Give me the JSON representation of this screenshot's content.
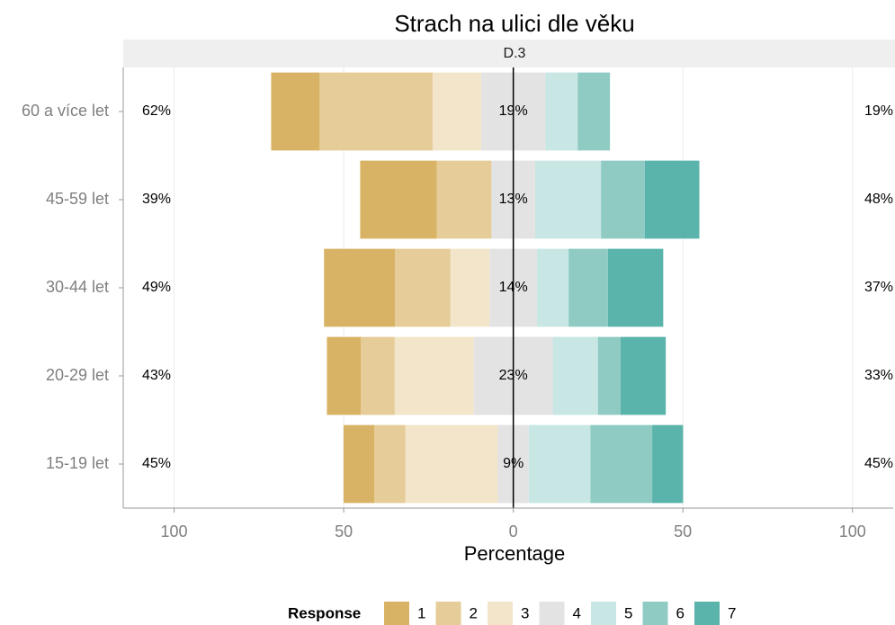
{
  "chart_data": {
    "type": "diverging_bar",
    "title": "Strach na ulici dle věku",
    "facet_label": "D.3",
    "xlabel": "Percentage",
    "legend_title": "Response",
    "legend_position": "bottom",
    "categories": [
      "60 a více let",
      "45-59 let",
      "30-44 let",
      "20-29 let",
      "15-19 let"
    ],
    "neutral_series": 3,
    "series": [
      {
        "name": "1",
        "color": "#d8b365",
        "values": [
          14.3,
          22.6,
          20.9,
          10,
          9.1
        ]
      },
      {
        "name": "2",
        "color": "#e6cc98",
        "values": [
          33.3,
          16.1,
          16.3,
          10,
          9.1
        ]
      },
      {
        "name": "3",
        "color": "#f3e5c9",
        "values": [
          14.3,
          0,
          11.6,
          23.3,
          27.3
        ]
      },
      {
        "name": "4",
        "color": "#e3e3e3",
        "values": [
          19,
          12.9,
          14,
          23.3,
          9.1
        ]
      },
      {
        "name": "5",
        "color": "#c8e6e3",
        "values": [
          9.5,
          19.4,
          9.3,
          13.3,
          18.2
        ]
      },
      {
        "name": "6",
        "color": "#8fcbc3",
        "values": [
          9.5,
          12.9,
          11.6,
          6.7,
          18.2
        ]
      },
      {
        "name": "7",
        "color": "#5ab4ac",
        "values": [
          0,
          16.1,
          16.3,
          13.3,
          9.1
        ]
      }
    ],
    "low_pct": [
      {
        "value": 62,
        "label": "62%"
      },
      {
        "value": 39,
        "label": "39%"
      },
      {
        "value": 49,
        "label": "49%"
      },
      {
        "value": 43,
        "label": "43%"
      },
      {
        "value": 45,
        "label": "45%"
      }
    ],
    "neutral_pct": [
      {
        "value": 19,
        "label": "19%"
      },
      {
        "value": 13,
        "label": "13%"
      },
      {
        "value": 14,
        "label": "14%"
      },
      {
        "value": 23,
        "label": "23%"
      },
      {
        "value": 9,
        "label": "9%"
      }
    ],
    "high_pct": [
      {
        "value": 19,
        "label": "19%"
      },
      {
        "value": 48,
        "label": "48%"
      },
      {
        "value": 37,
        "label": "37%"
      },
      {
        "value": 33,
        "label": "33%"
      },
      {
        "value": 45,
        "label": "45%"
      }
    ],
    "xlim": [
      -115,
      112
    ],
    "xticks": [
      {
        "value": -100,
        "label": "100"
      },
      {
        "value": -50,
        "label": "50"
      },
      0,
      50,
      {
        "value": 100,
        "label": "100"
      }
    ],
    "grid": true
  }
}
